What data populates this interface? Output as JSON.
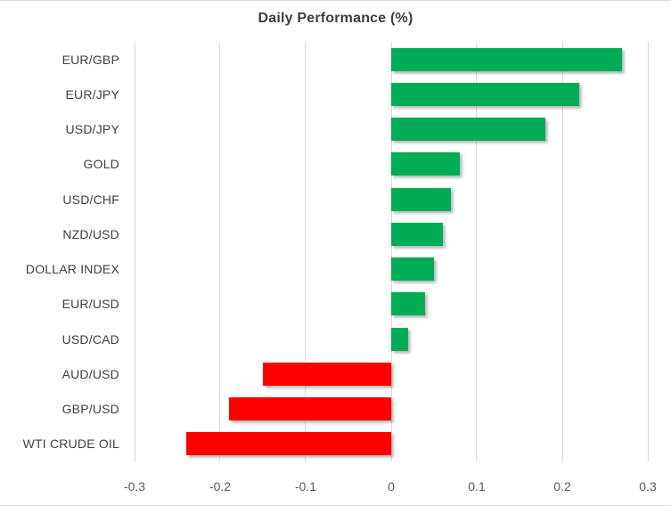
{
  "chart_data": {
    "type": "bar",
    "orientation": "horizontal",
    "title": "Daily Performance (%)",
    "categories": [
      "EUR/GBP",
      "EUR/JPY",
      "USD/JPY",
      "GOLD",
      "USD/CHF",
      "NZD/USD",
      "DOLLAR INDEX",
      "EUR/USD",
      "USD/CAD",
      "AUD/USD",
      "GBP/USD",
      "WTI CRUDE OIL"
    ],
    "values": [
      0.27,
      0.22,
      0.18,
      0.08,
      0.07,
      0.06,
      0.05,
      0.04,
      0.02,
      -0.15,
      -0.19,
      -0.24
    ],
    "xlabel": "",
    "ylabel": "",
    "xlim": [
      -0.3,
      0.3
    ],
    "xticks": [
      -0.3,
      -0.2,
      -0.1,
      0,
      0.1,
      0.2,
      0.3
    ],
    "xtick_labels": [
      "-0.3",
      "-0.2",
      "-0.1",
      "0",
      "0.1",
      "0.2",
      "0.3"
    ],
    "grid": true,
    "legend": false,
    "colors": {
      "positive": "#00AC55",
      "negative": "#FF0000",
      "gridline": "#D9D9D9",
      "title_text": "#3F3F3F",
      "category_text": "#404040",
      "tick_text": "#595959"
    }
  }
}
